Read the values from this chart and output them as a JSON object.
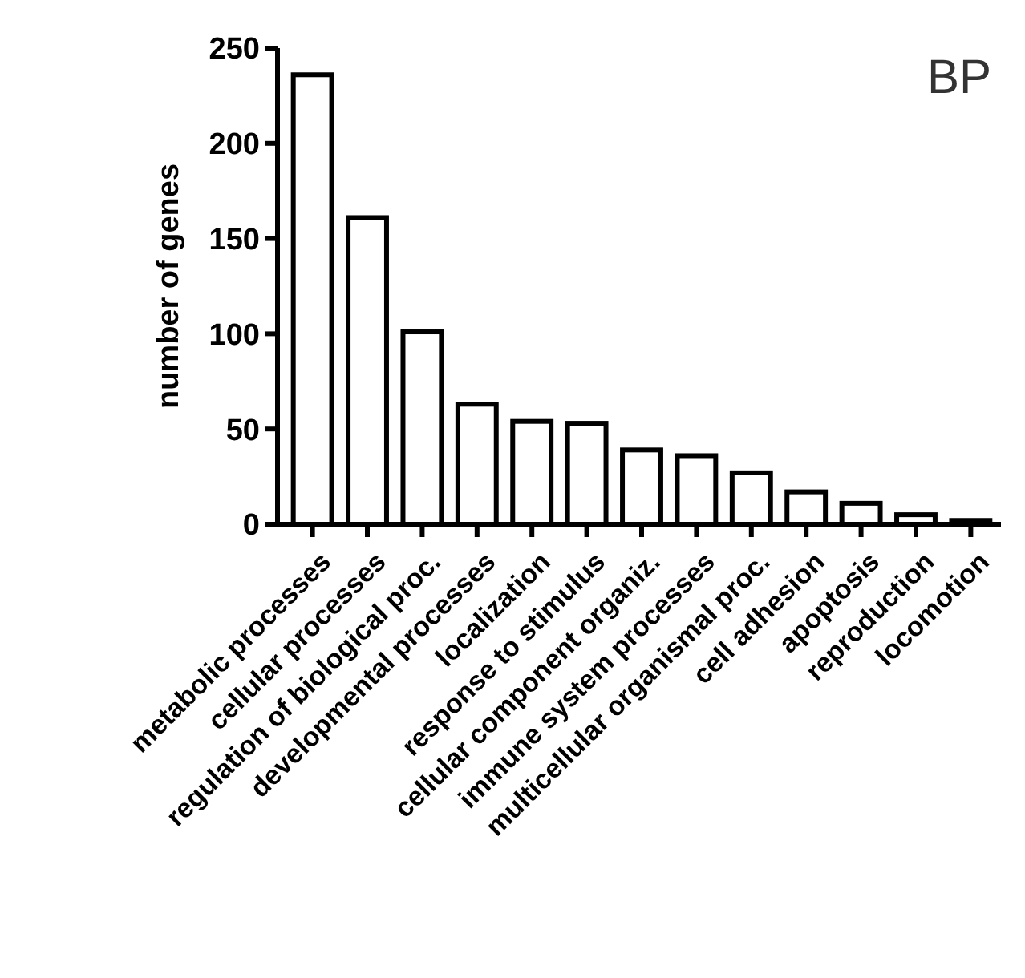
{
  "chart_data": {
    "type": "bar",
    "title": "BP",
    "ylabel": "number of genes",
    "categories": [
      "metabolic processes",
      "cellular processes",
      "regulation of biological proc.",
      "developmental processes",
      "localization",
      "response to stimulus",
      "cellular component organiz.",
      "immune system processes",
      "multicellular organismal proc.",
      "cell adhesion",
      "apoptosis",
      "reproduction",
      "locomotion"
    ],
    "values": [
      236,
      161,
      101,
      63,
      54,
      53,
      39,
      36,
      27,
      17,
      11,
      5,
      2
    ],
    "color": "#ffffff",
    "ylim": [
      0,
      250
    ],
    "yticks": [
      0,
      50,
      100,
      150,
      200,
      250
    ],
    "grid": false
  }
}
